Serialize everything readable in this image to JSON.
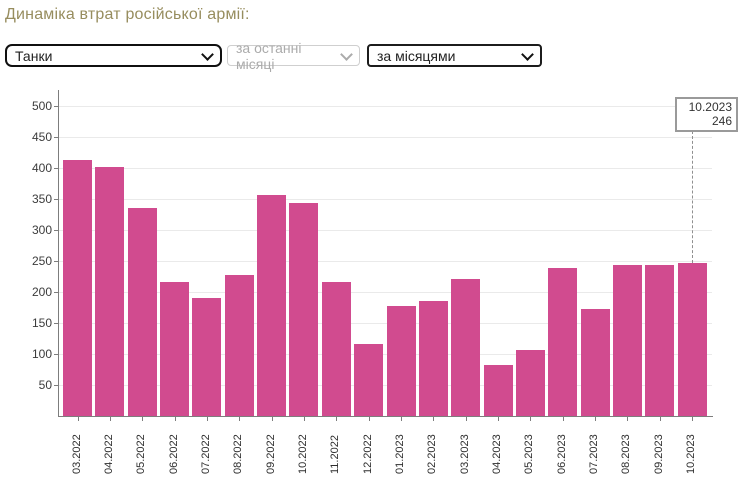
{
  "header": {
    "title": "Динаміка втрат російської армії:"
  },
  "controls": {
    "category_select": {
      "value": "Танки"
    },
    "period_select": {
      "value": "за останні місяці",
      "disabled": true
    },
    "grouping_select": {
      "value": "за місяцями"
    }
  },
  "tooltip": {
    "label": "10.2023",
    "value": "246"
  },
  "chart_data": {
    "type": "bar",
    "title": "Динаміка втрат російської армії — Танки, за місяцями",
    "categories": [
      "03.2022",
      "04.2022",
      "05.2022",
      "06.2022",
      "07.2022",
      "08.2022",
      "09.2022",
      "10.2022",
      "11.2022",
      "12.2022",
      "01.2023",
      "02.2023",
      "03.2023",
      "04.2023",
      "05.2023",
      "06.2023",
      "07.2023",
      "08.2023",
      "09.2023",
      "10.2023"
    ],
    "values": [
      413,
      401,
      335,
      216,
      191,
      228,
      356,
      343,
      216,
      116,
      178,
      186,
      221,
      83,
      106,
      238,
      172,
      244,
      244,
      246
    ],
    "xlabel": "",
    "ylabel": "",
    "ylim": [
      0,
      500
    ],
    "ytick_step": 50,
    "grid": true,
    "legend": "none",
    "x_label_rotation": -90,
    "bar_color": "#d14b8f",
    "highlight": {
      "category": "10.2023",
      "value": 246
    }
  }
}
